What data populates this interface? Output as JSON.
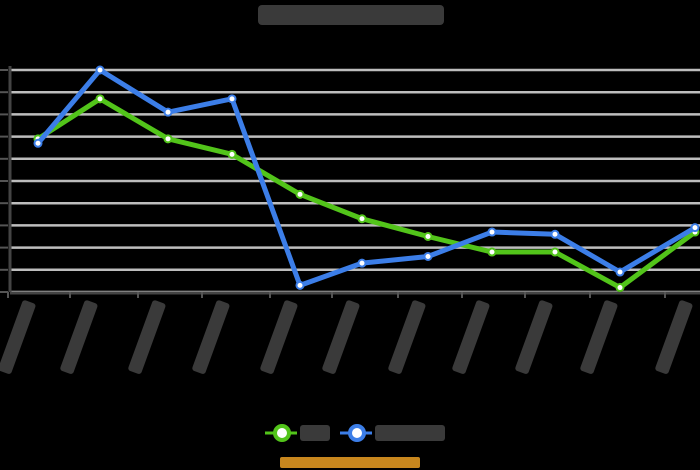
{
  "chart_data": {
    "type": "line",
    "title": "",
    "xlabel": "",
    "ylabel": "",
    "categories": [
      "",
      "",
      "",
      "",
      "",
      "",
      "",
      "",
      "",
      "",
      ""
    ],
    "ylim": [
      0,
      10
    ],
    "grid": true,
    "legend_placement": "bottom",
    "series": [
      {
        "name": "",
        "color": "#52c41a",
        "values": [
          6.9,
          8.7,
          6.9,
          6.2,
          4.4,
          3.3,
          2.5,
          1.8,
          1.8,
          0.2,
          2.7
        ]
      },
      {
        "name": "",
        "color": "#3c7ee8",
        "values": [
          6.7,
          10.0,
          8.1,
          8.7,
          0.3,
          1.3,
          1.6,
          2.7,
          2.6,
          0.9,
          2.9
        ]
      }
    ],
    "footer_color": "#c8871e"
  }
}
